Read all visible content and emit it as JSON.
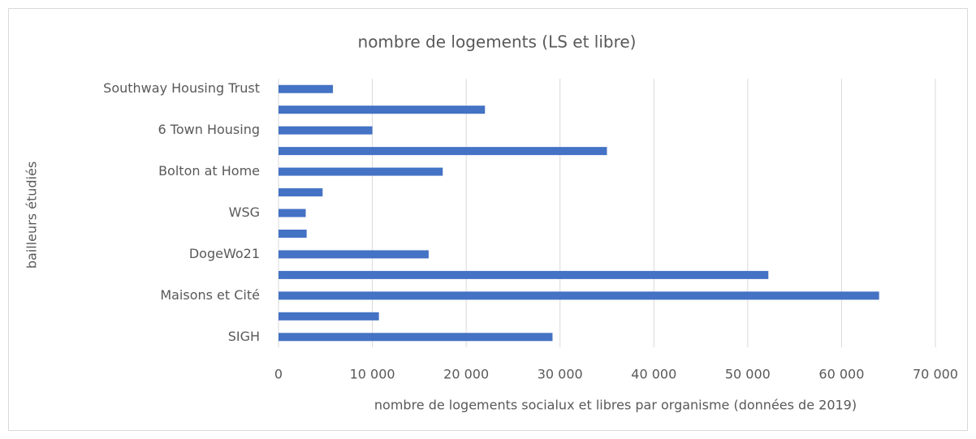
{
  "chart_data": {
    "type": "barh",
    "title": "nombre de logements (LS et libre)",
    "x_label": "nombre de logements socialux et libres par organisme (données de 2019)",
    "y_label": "bailleurs étudiés",
    "categories": [
      "SIGH",
      null,
      "Maisons et Cité",
      null,
      "DogeWo21",
      null,
      "WSG",
      null,
      "Bolton at Home",
      null,
      "6 Town Housing",
      null,
      "Southway Housing Trust"
    ],
    "values": [
      29200,
      10700,
      64000,
      52200,
      16000,
      3000,
      2900,
      4700,
      17500,
      35000,
      10000,
      22000,
      5800
    ],
    "color": "#4472c4",
    "xlim": [
      0,
      70000
    ],
    "xticks": [
      0,
      {
        "value": 10000,
        "label": "10 000"
      },
      {
        "value": 20000,
        "label": "20 000"
      },
      {
        "value": 30000,
        "label": "30 000"
      },
      {
        "value": 40000,
        "label": "40 000"
      },
      {
        "value": 50000,
        "label": "50 000"
      },
      {
        "value": 60000,
        "label": "60 000"
      },
      {
        "value": 70000,
        "label": "70 000"
      }
    ],
    "grid": true
  }
}
